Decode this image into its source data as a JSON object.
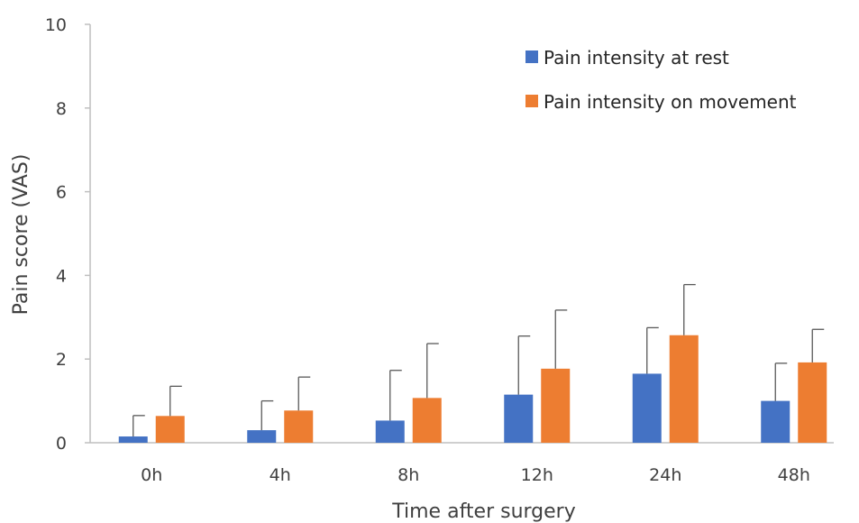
{
  "chart_data": {
    "type": "bar",
    "xlabel": "Time after surgery",
    "ylabel": "Pain  score (VAS)",
    "ylim": [
      0,
      10
    ],
    "yticks": [
      0,
      2,
      4,
      6,
      8,
      10
    ],
    "categories": [
      "0h",
      "4h",
      "8h",
      "12h",
      "24h",
      "48h"
    ],
    "series": [
      {
        "name": "Pain intensity at rest",
        "color": "#4472C4",
        "values": [
          0.15,
          0.3,
          0.53,
          1.15,
          1.65,
          1.0
        ],
        "error": [
          0.5,
          0.7,
          1.2,
          1.4,
          1.1,
          0.9
        ]
      },
      {
        "name": "Pain intensity on movement",
        "color": "#ED7D31",
        "values": [
          0.64,
          0.77,
          1.07,
          1.77,
          2.57,
          1.92
        ],
        "error": [
          0.71,
          0.8,
          1.3,
          1.4,
          1.21,
          0.79
        ]
      }
    ],
    "legend": "top-right",
    "grid": false
  }
}
